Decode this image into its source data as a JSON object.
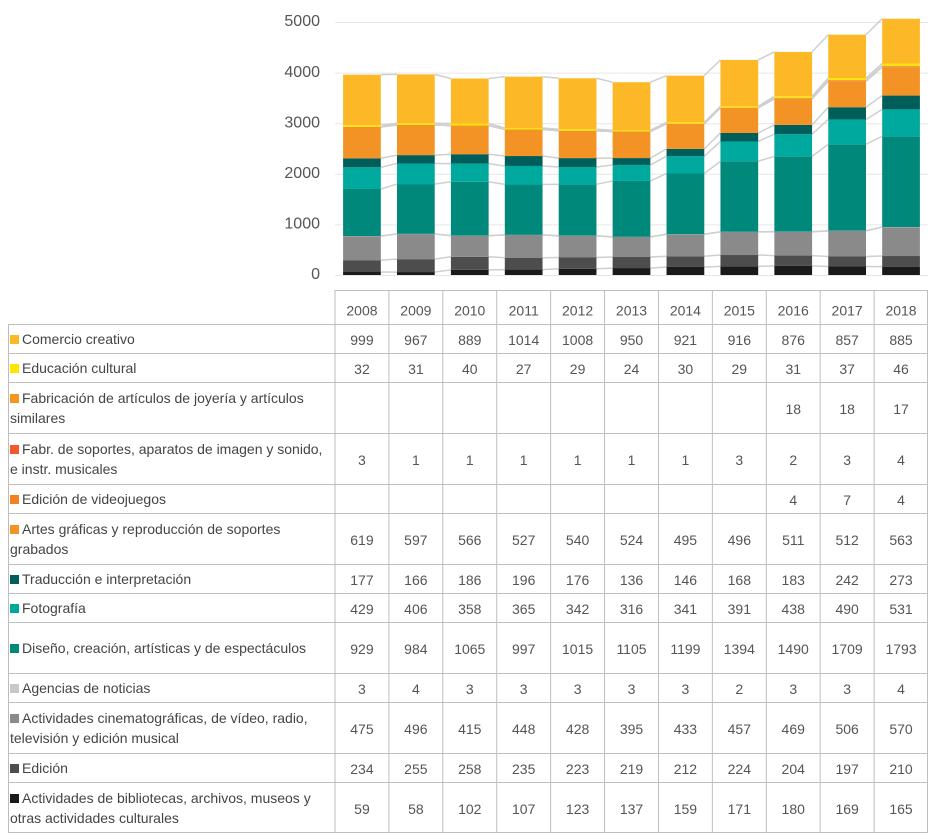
{
  "chart_data": {
    "type": "bar",
    "stacked": true,
    "categories": [
      "2008",
      "2009",
      "2010",
      "2011",
      "2012",
      "2013",
      "2014",
      "2015",
      "2016",
      "2017",
      "2018"
    ],
    "ylim": [
      0,
      5000
    ],
    "yticks": [
      0,
      1000,
      2000,
      3000,
      4000,
      5000
    ],
    "grid": true,
    "series": [
      {
        "name": "Comercio creativo",
        "color": "#fdb827",
        "values": [
          999,
          967,
          889,
          1014,
          1008,
          950,
          921,
          916,
          876,
          857,
          885
        ]
      },
      {
        "name": "Educación cultural",
        "color": "#ffe500",
        "values": [
          32,
          31,
          40,
          27,
          29,
          24,
          30,
          29,
          31,
          37,
          46
        ]
      },
      {
        "name": "Fabricación de artículos de joyería y artículos similares",
        "color": "#f7941d",
        "values": [
          null,
          null,
          null,
          null,
          null,
          null,
          null,
          null,
          18,
          18,
          17
        ]
      },
      {
        "name": "Fabr. de soportes, aparatos de imagen y sonido, e instr. musicales",
        "color": "#f15a29",
        "values": [
          3,
          1,
          1,
          1,
          1,
          1,
          1,
          3,
          2,
          3,
          4
        ]
      },
      {
        "name": "Edición de videojuegos",
        "color": "#f58220",
        "values": [
          null,
          null,
          null,
          null,
          null,
          null,
          null,
          null,
          4,
          7,
          4
        ]
      },
      {
        "name": "Artes gráficas y reproducción de soportes grabados",
        "color": "#f39325",
        "values": [
          619,
          597,
          566,
          527,
          540,
          524,
          495,
          496,
          511,
          512,
          563
        ]
      },
      {
        "name": "Traducción e interpretación",
        "color": "#005e5a",
        "values": [
          177,
          166,
          186,
          196,
          176,
          136,
          146,
          168,
          183,
          242,
          273
        ]
      },
      {
        "name": "Fotografía",
        "color": "#00a99d",
        "values": [
          429,
          406,
          358,
          365,
          342,
          316,
          341,
          391,
          438,
          490,
          531
        ]
      },
      {
        "name": "Diseño, creación, artísticas y de espectáculos",
        "color": "#00897b",
        "values": [
          929,
          984,
          1065,
          997,
          1015,
          1105,
          1199,
          1394,
          1490,
          1709,
          1793
        ]
      },
      {
        "name": "Agencias de noticias",
        "color": "#c8c8c8",
        "values": [
          3,
          4,
          3,
          3,
          3,
          3,
          3,
          2,
          3,
          3,
          4
        ]
      },
      {
        "name": "Actividades cinematográficas, de vídeo, radio, televisión y edición musical",
        "color": "#8a8a8a",
        "values": [
          475,
          496,
          415,
          448,
          428,
          395,
          433,
          457,
          469,
          506,
          570
        ]
      },
      {
        "name": "Edición",
        "color": "#4d4d4d",
        "values": [
          234,
          255,
          258,
          235,
          223,
          219,
          212,
          224,
          204,
          197,
          210
        ]
      },
      {
        "name": "Actividades de bibliotecas, archivos, museos y otras actividades culturales",
        "color": "#1a1a1a",
        "values": [
          59,
          58,
          102,
          107,
          123,
          137,
          159,
          171,
          180,
          169,
          165
        ]
      }
    ]
  }
}
